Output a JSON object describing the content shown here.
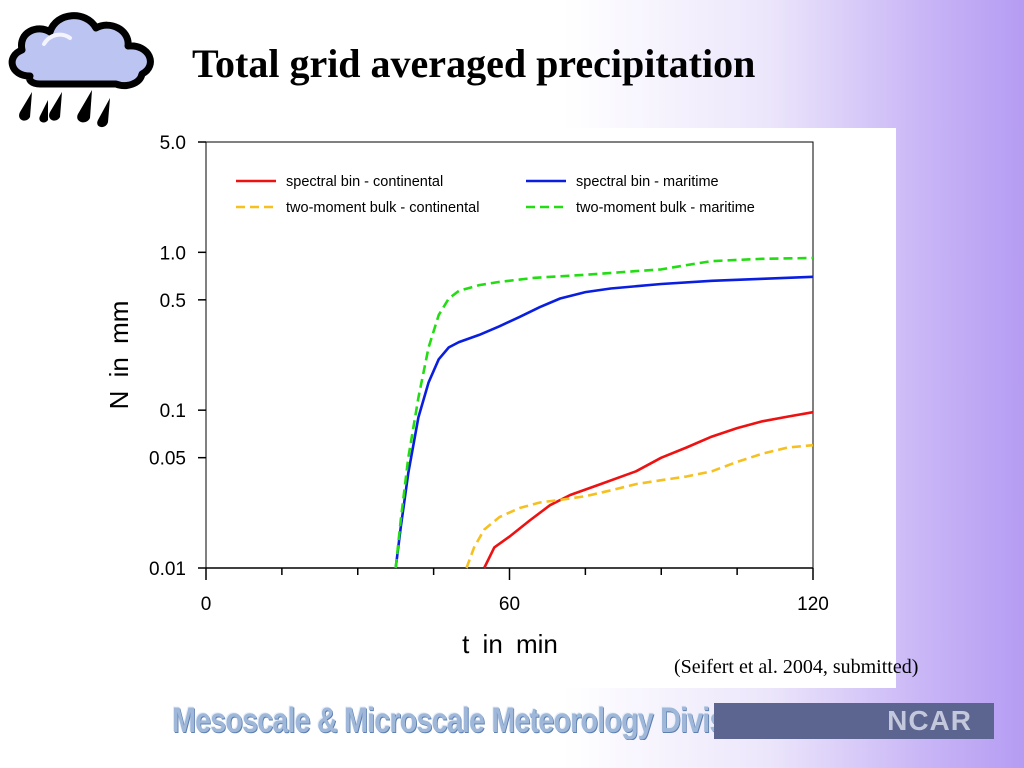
{
  "slide": {
    "title": "Total grid averaged precipitation",
    "citation": "(Seifert et al. 2004, submitted)",
    "icon": "rain-cloud-icon"
  },
  "footer": {
    "division": "Mesoscale & Microscale Meteorology Division",
    "org": "NCAR"
  },
  "chart_data": {
    "type": "line",
    "xlabel": "t in min",
    "ylabel": "N in mm",
    "xlim": [
      0,
      120
    ],
    "ylim": [
      0.01,
      5.0
    ],
    "yscale": "log",
    "x_ticks": [
      0,
      60,
      120
    ],
    "y_ticks": [
      5.0,
      1.0,
      0.5,
      0.1,
      0.05,
      0.01
    ],
    "y_tick_labels": [
      "5.0",
      "1.0",
      "0.5",
      "0.1",
      "0.05",
      "0.01"
    ],
    "legend_position": "top",
    "series": [
      {
        "name": "spectral bin - continental",
        "color": "#ee1111",
        "dash": "solid",
        "points": [
          [
            55,
            0.01
          ],
          [
            57,
            0.0135
          ],
          [
            60,
            0.0158
          ],
          [
            64,
            0.02
          ],
          [
            68,
            0.025
          ],
          [
            72,
            0.029
          ],
          [
            78,
            0.034
          ],
          [
            85,
            0.041
          ],
          [
            90,
            0.05
          ],
          [
            95,
            0.058
          ],
          [
            100,
            0.068
          ],
          [
            105,
            0.077
          ],
          [
            110,
            0.085
          ],
          [
            115,
            0.091
          ],
          [
            120,
            0.097
          ]
        ]
      },
      {
        "name": "spectral bin - maritime",
        "color": "#0a1ee0",
        "dash": "solid",
        "points": [
          [
            37.5,
            0.01
          ],
          [
            38.5,
            0.018
          ],
          [
            40,
            0.04
          ],
          [
            42,
            0.09
          ],
          [
            44,
            0.15
          ],
          [
            46,
            0.21
          ],
          [
            48,
            0.25
          ],
          [
            50,
            0.27
          ],
          [
            54,
            0.3
          ],
          [
            58,
            0.34
          ],
          [
            62,
            0.39
          ],
          [
            66,
            0.45
          ],
          [
            70,
            0.51
          ],
          [
            75,
            0.56
          ],
          [
            80,
            0.59
          ],
          [
            90,
            0.63
          ],
          [
            100,
            0.66
          ],
          [
            110,
            0.68
          ],
          [
            120,
            0.7
          ]
        ]
      },
      {
        "name": "two-moment bulk - continental",
        "color": "#f6c020",
        "dash": "dashed",
        "points": [
          [
            51.5,
            0.01
          ],
          [
            53,
            0.0135
          ],
          [
            55,
            0.0175
          ],
          [
            58,
            0.021
          ],
          [
            62,
            0.024
          ],
          [
            66,
            0.026
          ],
          [
            70,
            0.027
          ],
          [
            75,
            0.0285
          ],
          [
            80,
            0.031
          ],
          [
            85,
            0.034
          ],
          [
            90,
            0.036
          ],
          [
            95,
            0.038
          ],
          [
            100,
            0.041
          ],
          [
            105,
            0.047
          ],
          [
            110,
            0.053
          ],
          [
            115,
            0.058
          ],
          [
            120,
            0.06
          ]
        ]
      },
      {
        "name": "two-moment bulk - maritime",
        "color": "#22dd11",
        "dash": "dashed",
        "points": [
          [
            37.5,
            0.01
          ],
          [
            38.5,
            0.02
          ],
          [
            40,
            0.05
          ],
          [
            42,
            0.12
          ],
          [
            44,
            0.25
          ],
          [
            46,
            0.4
          ],
          [
            48,
            0.51
          ],
          [
            50,
            0.57
          ],
          [
            54,
            0.62
          ],
          [
            58,
            0.65
          ],
          [
            65,
            0.69
          ],
          [
            75,
            0.72
          ],
          [
            85,
            0.76
          ],
          [
            90,
            0.78
          ],
          [
            95,
            0.83
          ],
          [
            100,
            0.88
          ],
          [
            110,
            0.91
          ],
          [
            120,
            0.92
          ]
        ]
      }
    ]
  }
}
